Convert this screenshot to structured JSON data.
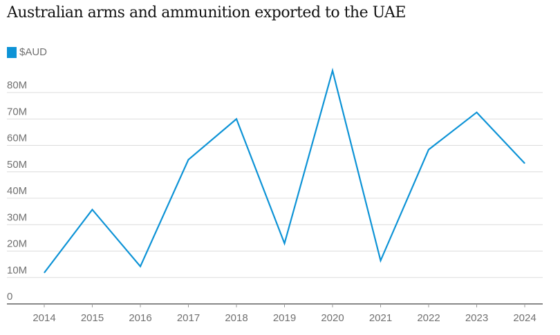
{
  "chart_data": {
    "type": "line",
    "title": "Australian arms and ammunition exported to the UAE",
    "xlabel": "",
    "ylabel": "",
    "categories": [
      "2014",
      "2015",
      "2016",
      "2017",
      "2018",
      "2019",
      "2020",
      "2021",
      "2022",
      "2023",
      "2024"
    ],
    "series": [
      {
        "name": "$AUD",
        "color": "#0d93d6",
        "values": [
          11.8,
          35.7,
          14.2,
          54.6,
          70.0,
          22.9,
          88.3,
          16.4,
          58.4,
          72.5,
          53.2
        ]
      }
    ],
    "yunit": "M",
    "ylim": [
      0,
      80
    ],
    "yticks": [
      "0",
      "10M",
      "20M",
      "30M",
      "40M",
      "50M",
      "60M",
      "70M",
      "80M"
    ],
    "grid": true,
    "legend": "top-left"
  }
}
